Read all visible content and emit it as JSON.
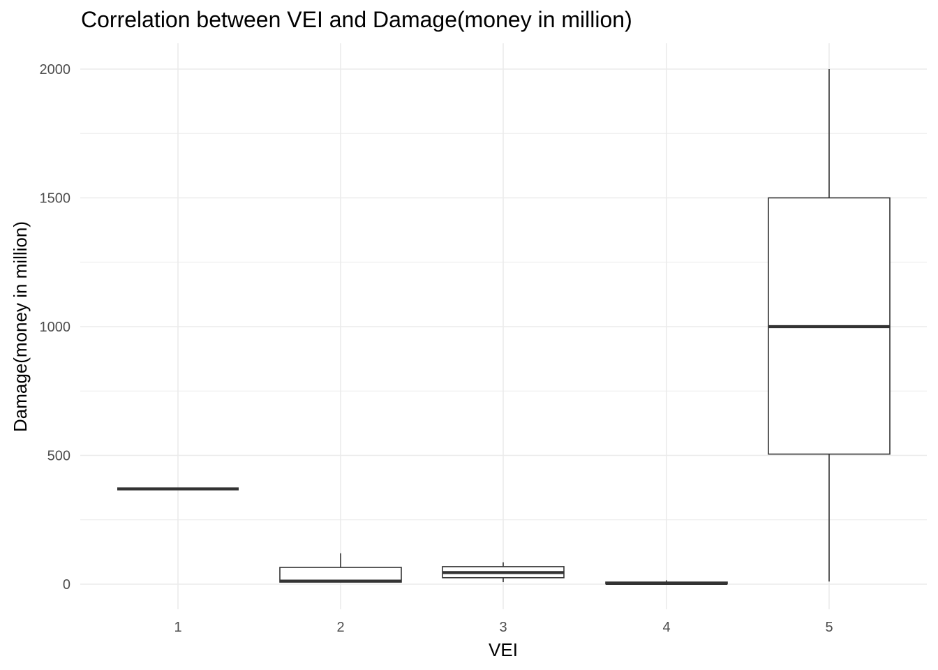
{
  "chart_data": {
    "type": "box",
    "title": "Correlation between VEI and Damage(money in million)",
    "xlabel": "VEI",
    "ylabel": "Damage(money in million)",
    "categories": [
      "1",
      "2",
      "3",
      "4",
      "5"
    ],
    "yticks": [
      "0",
      "500",
      "1000",
      "1500",
      "2000"
    ],
    "ylim": [
      -95,
      2100
    ],
    "grid": true,
    "boxes": [
      {
        "category": "1",
        "min": 370,
        "q1": 370,
        "median": 370,
        "q3": 370,
        "max": 370
      },
      {
        "category": "2",
        "min": 8,
        "q1": 8,
        "median": 12,
        "q3": 65,
        "max": 120
      },
      {
        "category": "3",
        "min": 8,
        "q1": 25,
        "median": 45,
        "q3": 68,
        "max": 85
      },
      {
        "category": "4",
        "min": 1,
        "q1": 1,
        "median": 3,
        "q3": 8,
        "max": 15
      },
      {
        "category": "5",
        "min": 10,
        "q1": 505,
        "median": 1000,
        "q3": 1500,
        "max": 2000
      }
    ],
    "colors": {
      "box_line": "#333333",
      "grid": "#ebebeb",
      "tick_text": "#4d4d4d"
    }
  }
}
